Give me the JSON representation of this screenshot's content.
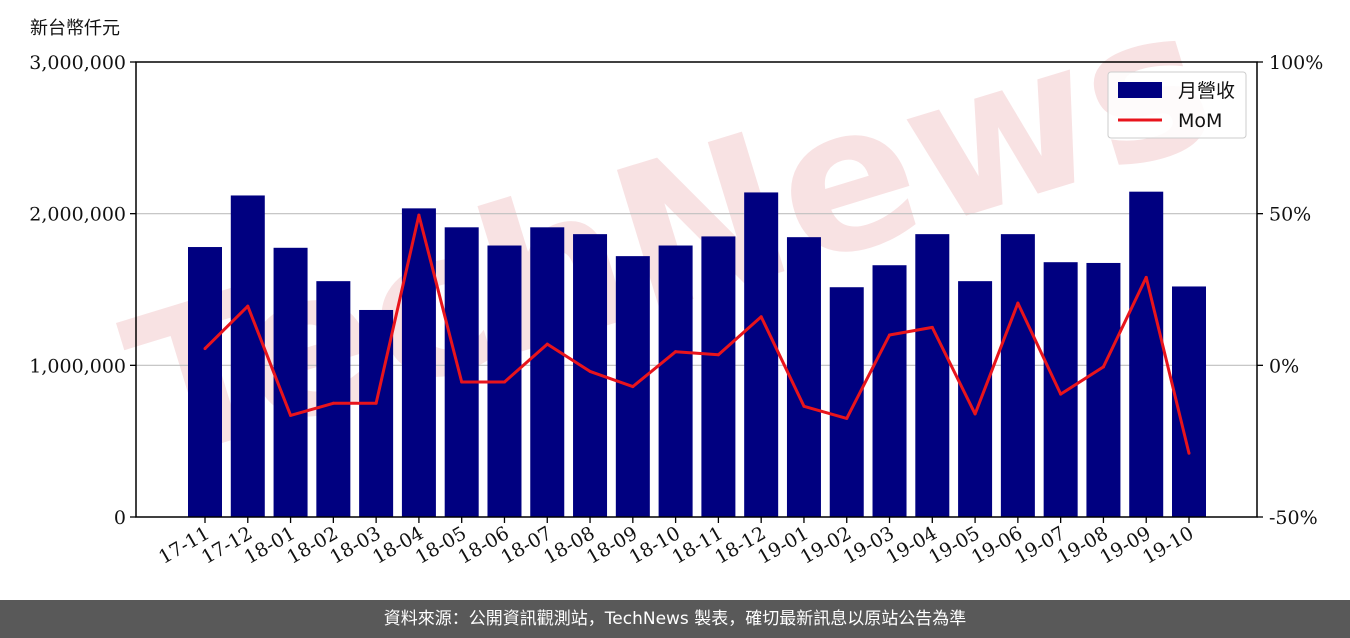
{
  "unit_label": "新台幣仟元",
  "footer_text": "資料來源：公開資訊觀測站，TechNews 製表，確切最新訊息以原站公告為準",
  "watermark": "TechNews",
  "colors": {
    "bar": "#000080",
    "line": "#e8141c",
    "footer_bg": "#595959",
    "watermark": "#f6d6d8"
  },
  "chart_data": {
    "type": "bar",
    "categories": [
      "17-11",
      "17-12",
      "18-01",
      "18-02",
      "18-03",
      "18-04",
      "18-05",
      "18-06",
      "18-07",
      "18-08",
      "18-09",
      "18-10",
      "18-11",
      "18-12",
      "19-01",
      "19-02",
      "19-03",
      "19-04",
      "19-05",
      "19-06",
      "19-07",
      "19-08",
      "19-09",
      "19-10"
    ],
    "series": [
      {
        "name": "月營收",
        "type": "bar",
        "axis": "left",
        "values": [
          1780000,
          2120000,
          1775000,
          1555000,
          1365000,
          2035000,
          1910000,
          1790000,
          1910000,
          1865000,
          1720000,
          1790000,
          1850000,
          2140000,
          1845000,
          1515000,
          1660000,
          1865000,
          1555000,
          1865000,
          1680000,
          1675000,
          2145000,
          1520000
        ]
      },
      {
        "name": "MoM",
        "type": "line",
        "axis": "right",
        "values": [
          5.5,
          19.5,
          -16.5,
          -12.5,
          -12.5,
          49.5,
          -5.5,
          -5.5,
          7,
          -2,
          -7,
          4.5,
          3.5,
          16,
          -13.5,
          -17.5,
          10,
          12.5,
          -16,
          20.5,
          -9.5,
          -0.5,
          29,
          -29
        ]
      }
    ],
    "y_left": {
      "range": [
        0,
        3000000
      ],
      "ticks": [
        0,
        1000000,
        2000000,
        3000000
      ],
      "tick_labels": [
        "0",
        "1,000,000",
        "2,000,000",
        "3,000,000"
      ]
    },
    "y_right": {
      "range": [
        -50,
        100
      ],
      "ticks": [
        -50,
        0,
        50,
        100
      ],
      "tick_labels": [
        "-50%",
        "0%",
        "50%",
        "100%"
      ]
    },
    "grid": "horizontal",
    "legend_position": "top-right"
  }
}
